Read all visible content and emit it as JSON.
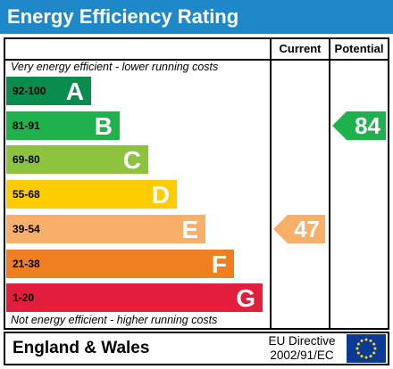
{
  "title": "Energy Efficiency Rating",
  "columns": {
    "current": "Current",
    "potential": "Potential"
  },
  "top_note": "Very energy efficient - lower running costs",
  "bottom_note": "Not energy efficient - higher running costs",
  "bands": [
    {
      "range": "92-100",
      "letter": "A",
      "color": "#0b8c4f"
    },
    {
      "range": "81-91",
      "letter": "B",
      "color": "#1eb14d"
    },
    {
      "range": "69-80",
      "letter": "C",
      "color": "#8dc33f"
    },
    {
      "range": "55-68",
      "letter": "D",
      "color": "#ffcc00"
    },
    {
      "range": "39-54",
      "letter": "E",
      "color": "#f7af6a"
    },
    {
      "range": "21-38",
      "letter": "F",
      "color": "#ef7f22"
    },
    {
      "range": "1-20",
      "letter": "G",
      "color": "#e31d3c"
    }
  ],
  "current": {
    "value": "47",
    "band": "E",
    "color": "#f7af6a"
  },
  "potential": {
    "value": "84",
    "band": "B",
    "color": "#1eb14d"
  },
  "footer": {
    "region": "England & Wales",
    "directive_line1": "EU Directive",
    "directive_line2": "2002/91/EC"
  },
  "icons": {
    "flag": "eu-flag-icon"
  }
}
